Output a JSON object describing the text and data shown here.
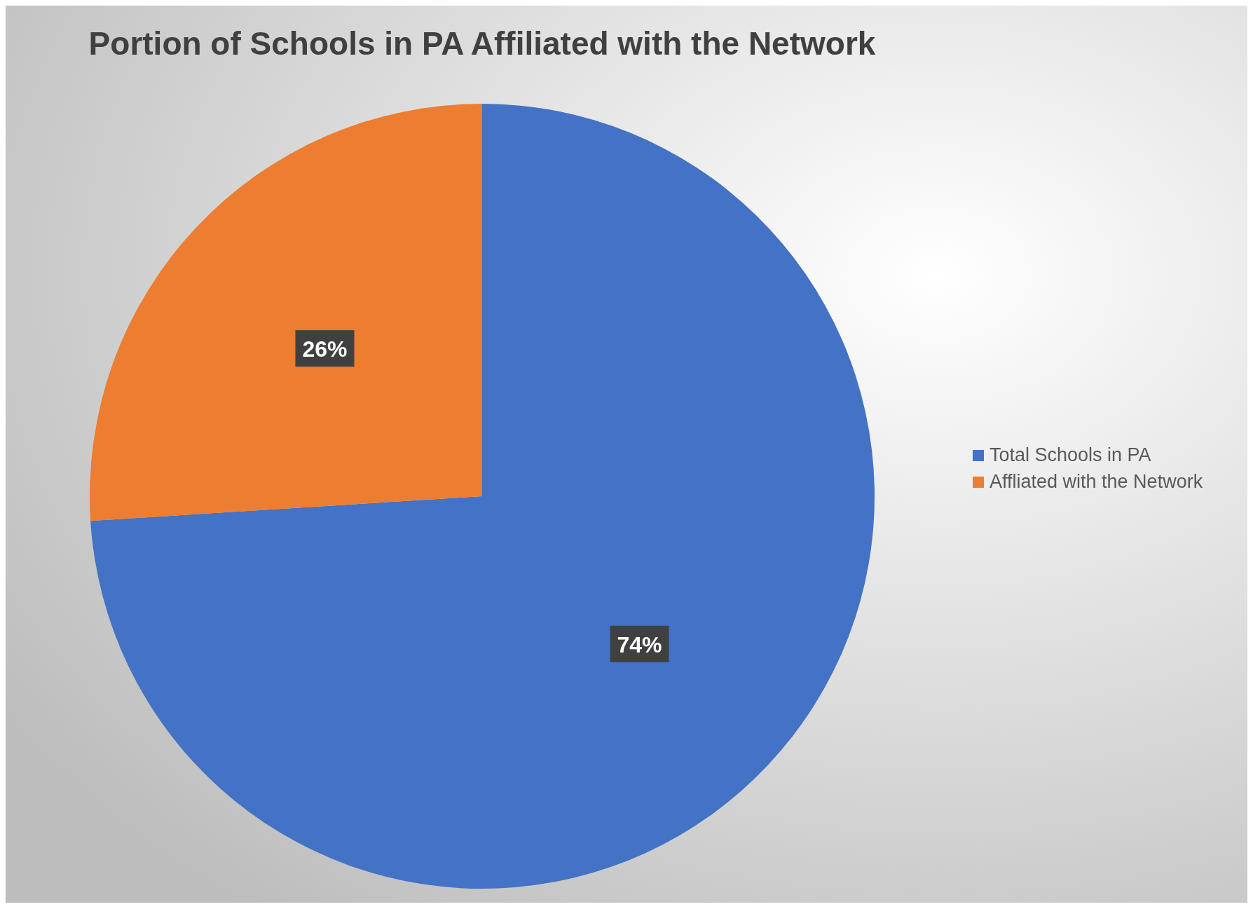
{
  "chart_data": {
    "type": "pie",
    "title": "Portion of Schools in PA Affiliated with the Network",
    "categories": [
      "Total Schools in PA",
      "Affliated with the Network"
    ],
    "values": [
      74,
      26
    ],
    "colors": [
      "#4472c4",
      "#ed7d31"
    ],
    "value_labels": [
      "74%",
      "26%"
    ],
    "legend": "right"
  }
}
